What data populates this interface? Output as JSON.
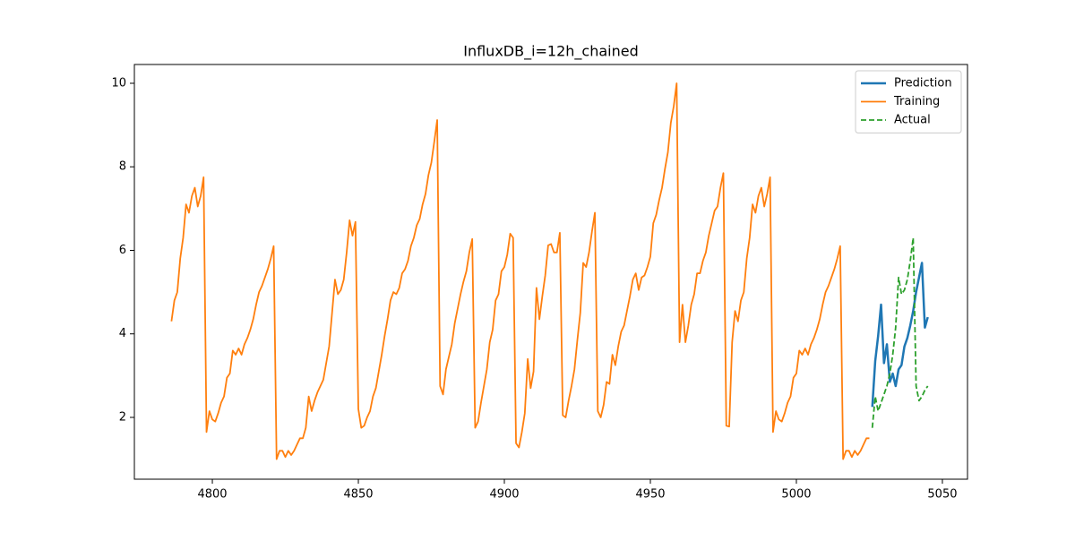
{
  "chart_data": {
    "type": "line",
    "title": "InfluxDB_i=12h_chained",
    "xlim": [
      4773.3,
      5058.6
    ],
    "ylim": [
      0.52,
      10.45
    ],
    "xticks": [
      4800,
      4850,
      4900,
      4950,
      5000,
      5050
    ],
    "yticks": [
      2,
      4,
      6,
      8,
      10
    ],
    "legend": "upper right",
    "series": [
      {
        "name": "Prediction",
        "color": "#1f77b4",
        "style": "solid",
        "width": 2.5,
        "x": [
          5026,
          5027,
          5028,
          5029,
          5030,
          5031,
          5032,
          5033,
          5034,
          5035,
          5036,
          5037,
          5038,
          5039,
          5040,
          5041,
          5042,
          5043,
          5044,
          5045
        ],
        "values": [
          2.25,
          3.35,
          3.95,
          4.7,
          3.3,
          3.75,
          2.85,
          3.05,
          2.75,
          3.15,
          3.25,
          3.7,
          3.9,
          4.2,
          4.55,
          5.0,
          5.35,
          5.7,
          4.15,
          4.4
        ]
      },
      {
        "name": "Training",
        "color": "#ff7f0e",
        "style": "solid",
        "width": 1.8,
        "x": [
          4786,
          4787,
          4788,
          4789,
          4790,
          4791,
          4792,
          4793,
          4794,
          4795,
          4796,
          4797,
          4798,
          4799,
          4800,
          4801,
          4802,
          4803,
          4804,
          4805,
          4806,
          4807,
          4808,
          4809,
          4810,
          4811,
          4812,
          4813,
          4814,
          4815,
          4816,
          4817,
          4818,
          4819,
          4820,
          4821,
          4822,
          4823,
          4824,
          4825,
          4826,
          4827,
          4828,
          4829,
          4830,
          4831,
          4832,
          4833,
          4834,
          4835,
          4836,
          4837,
          4838,
          4839,
          4840,
          4841,
          4842,
          4843,
          4844,
          4845,
          4846,
          4847,
          4848,
          4849,
          4850,
          4851,
          4852,
          4853,
          4854,
          4855,
          4856,
          4857,
          4858,
          4859,
          4860,
          4861,
          4862,
          4863,
          4864,
          4865,
          4866,
          4867,
          4868,
          4869,
          4870,
          4871,
          4872,
          4873,
          4874,
          4875,
          4876,
          4877,
          4878,
          4879,
          4880,
          4881,
          4882,
          4883,
          4884,
          4885,
          4886,
          4887,
          4888,
          4889,
          4890,
          4891,
          4892,
          4893,
          4894,
          4895,
          4896,
          4897,
          4898,
          4899,
          4900,
          4901,
          4902,
          4903,
          4904,
          4905,
          4906,
          4907,
          4908,
          4909,
          4910,
          4911,
          4912,
          4913,
          4914,
          4915,
          4916,
          4917,
          4918,
          4919,
          4920,
          4921,
          4922,
          4923,
          4924,
          4925,
          4926,
          4927,
          4928,
          4929,
          4930,
          4931,
          4932,
          4933,
          4934,
          4935,
          4936,
          4937,
          4938,
          4939,
          4940,
          4941,
          4942,
          4943,
          4944,
          4945,
          4946,
          4947,
          4948,
          4949,
          4950,
          4951,
          4952,
          4953,
          4954,
          4955,
          4956,
          4957,
          4958,
          4959,
          4960,
          4961,
          4962,
          4963,
          4964,
          4965,
          4966,
          4967,
          4968,
          4969,
          4970,
          4971,
          4972,
          4973,
          4974,
          4975,
          4976,
          4977,
          4978,
          4979,
          4980,
          4981,
          4982,
          4983,
          4984,
          4985,
          4986,
          4987,
          4988,
          4989,
          4990,
          4991,
          4992,
          4993,
          4994,
          4995,
          4996,
          4997,
          4998,
          4999,
          5000,
          5001,
          5002,
          5003,
          5004,
          5005,
          5006,
          5007,
          5008,
          5009,
          5010,
          5011,
          5012,
          5013,
          5014,
          5015,
          5016,
          5017,
          5018,
          5019,
          5020,
          5021,
          5022,
          5023,
          5024,
          5025
        ],
        "values": [
          4.3,
          4.8,
          5.0,
          5.8,
          6.3,
          7.1,
          6.9,
          7.3,
          7.5,
          7.05,
          7.3,
          7.75,
          1.65,
          2.15,
          1.95,
          1.9,
          2.1,
          2.35,
          2.5,
          2.95,
          3.05,
          3.6,
          3.5,
          3.65,
          3.5,
          3.75,
          3.9,
          4.1,
          4.35,
          4.7,
          5.0,
          5.15,
          5.35,
          5.55,
          5.8,
          6.1,
          1.0,
          1.2,
          1.2,
          1.05,
          1.2,
          1.1,
          1.2,
          1.35,
          1.5,
          1.5,
          1.75,
          2.5,
          2.15,
          2.4,
          2.6,
          2.75,
          2.9,
          3.3,
          3.7,
          4.5,
          5.3,
          4.95,
          5.05,
          5.3,
          5.95,
          6.72,
          6.35,
          6.68,
          2.2,
          1.75,
          1.8,
          2.0,
          2.15,
          2.5,
          2.7,
          3.1,
          3.5,
          3.95,
          4.35,
          4.8,
          5.0,
          4.95,
          5.1,
          5.45,
          5.55,
          5.75,
          6.1,
          6.3,
          6.6,
          6.75,
          7.1,
          7.35,
          7.8,
          8.1,
          8.6,
          9.12,
          2.75,
          2.55,
          3.15,
          3.45,
          3.75,
          4.25,
          4.6,
          4.95,
          5.25,
          5.5,
          5.95,
          6.27,
          1.75,
          1.9,
          2.35,
          2.75,
          3.15,
          3.8,
          4.1,
          4.8,
          4.95,
          5.5,
          5.6,
          5.9,
          6.4,
          6.3,
          1.38,
          1.28,
          1.65,
          2.1,
          3.4,
          2.7,
          3.1,
          5.1,
          4.35,
          4.9,
          5.4,
          6.12,
          6.15,
          5.95,
          5.95,
          6.42,
          2.05,
          2.0,
          2.4,
          2.75,
          3.15,
          3.85,
          4.5,
          5.7,
          5.6,
          5.95,
          6.45,
          6.9,
          2.15,
          2.0,
          2.3,
          2.85,
          2.8,
          3.5,
          3.25,
          3.7,
          4.05,
          4.2,
          4.55,
          4.9,
          5.3,
          5.45,
          5.05,
          5.35,
          5.4,
          5.6,
          5.85,
          6.65,
          6.85,
          7.2,
          7.5,
          7.95,
          8.35,
          9.05,
          9.45,
          10.0,
          3.8,
          4.7,
          3.8,
          4.2,
          4.7,
          4.95,
          5.45,
          5.45,
          5.75,
          5.95,
          6.35,
          6.65,
          6.95,
          7.05,
          7.5,
          7.85,
          1.8,
          1.78,
          3.8,
          4.55,
          4.3,
          4.8,
          5.0,
          5.8,
          6.3,
          7.1,
          6.9,
          7.3,
          7.5,
          7.05,
          7.35,
          7.75,
          1.65,
          2.15,
          1.95,
          1.9,
          2.1,
          2.35,
          2.5,
          2.95,
          3.05,
          3.6,
          3.5,
          3.65,
          3.5,
          3.75,
          3.9,
          4.1,
          4.35,
          4.7,
          5.0,
          5.15,
          5.35,
          5.55,
          5.8,
          6.1,
          1.0,
          1.2,
          1.2,
          1.05,
          1.2,
          1.1,
          1.2,
          1.35,
          1.5,
          1.5
        ]
      },
      {
        "name": "Actual",
        "color": "#2ca02c",
        "style": "dashed",
        "width": 1.8,
        "x": [
          5026,
          5027,
          5028,
          5029,
          5030,
          5031,
          5032,
          5033,
          5034,
          5035,
          5036,
          5037,
          5038,
          5039,
          5040,
          5041,
          5042,
          5043,
          5044,
          5045
        ],
        "values": [
          1.75,
          2.5,
          2.15,
          2.35,
          2.55,
          2.75,
          3.05,
          3.5,
          4.15,
          5.35,
          4.95,
          5.05,
          5.3,
          5.75,
          6.3,
          2.75,
          2.4,
          2.5,
          2.65,
          2.75
        ]
      }
    ]
  }
}
